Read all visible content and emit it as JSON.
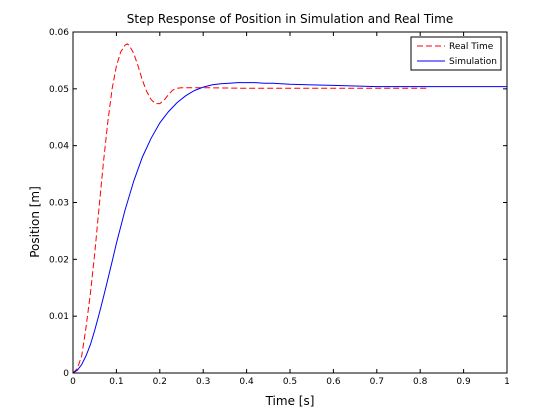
{
  "chart_data": {
    "type": "line",
    "title": "Step Response of Position in Simulation and Real Time",
    "xlabel": "Time [s]",
    "ylabel": "Position [m]",
    "xlim": [
      0,
      1
    ],
    "ylim": [
      0,
      0.06
    ],
    "xticks": [
      0,
      0.1,
      0.2,
      0.3,
      0.4,
      0.5,
      0.6,
      0.7,
      0.8,
      0.9,
      1
    ],
    "xtick_labels": [
      "0",
      "0.1",
      "0.2",
      "0.3",
      "0.4",
      "0.5",
      "0.6",
      "0.7",
      "0.8",
      "0.9",
      "1"
    ],
    "yticks": [
      0,
      0.01,
      0.02,
      0.03,
      0.04,
      0.05,
      0.06
    ],
    "ytick_labels": [
      "0",
      "0.01",
      "0.02",
      "0.03",
      "0.04",
      "0.05",
      "0.06"
    ],
    "grid": false,
    "legend_position": "top-right",
    "series": [
      {
        "name": "Real Time",
        "color": "#ff0000",
        "dash": "dashed",
        "x": [
          0,
          0.01,
          0.02,
          0.03,
          0.04,
          0.05,
          0.06,
          0.07,
          0.08,
          0.09,
          0.1,
          0.11,
          0.12,
          0.125,
          0.13,
          0.14,
          0.15,
          0.16,
          0.17,
          0.18,
          0.19,
          0.2,
          0.21,
          0.22,
          0.23,
          0.24,
          0.25,
          0.3,
          0.4,
          0.5,
          0.6,
          0.7,
          0.8,
          0.82
        ],
        "y": [
          0,
          0.0008,
          0.003,
          0.008,
          0.014,
          0.021,
          0.029,
          0.037,
          0.044,
          0.05,
          0.054,
          0.0565,
          0.0577,
          0.0579,
          0.0576,
          0.0562,
          0.054,
          0.0515,
          0.0495,
          0.0481,
          0.0474,
          0.0474,
          0.048,
          0.049,
          0.0498,
          0.0501,
          0.0502,
          0.0502,
          0.0501,
          0.0501,
          0.0501,
          0.0501,
          0.0501,
          0.0501
        ]
      },
      {
        "name": "Simulation",
        "color": "#0000ff",
        "dash": "solid",
        "x": [
          0,
          0.01,
          0.02,
          0.03,
          0.04,
          0.05,
          0.06,
          0.07,
          0.08,
          0.09,
          0.1,
          0.12,
          0.14,
          0.16,
          0.18,
          0.2,
          0.22,
          0.24,
          0.26,
          0.28,
          0.3,
          0.32,
          0.34,
          0.36,
          0.38,
          0.4,
          0.42,
          0.44,
          0.46,
          0.48,
          0.5,
          0.55,
          0.6,
          0.65,
          0.7,
          0.8,
          0.9,
          1.0
        ],
        "y": [
          0,
          0.0005,
          0.0015,
          0.003,
          0.005,
          0.0075,
          0.0103,
          0.0133,
          0.0164,
          0.0196,
          0.0228,
          0.0287,
          0.0338,
          0.038,
          0.0413,
          0.044,
          0.046,
          0.0476,
          0.0488,
          0.0497,
          0.0503,
          0.0507,
          0.0509,
          0.051,
          0.0511,
          0.0511,
          0.0511,
          0.051,
          0.051,
          0.0509,
          0.0508,
          0.0507,
          0.0506,
          0.0505,
          0.0504,
          0.0504,
          0.0504,
          0.0504
        ]
      }
    ]
  }
}
